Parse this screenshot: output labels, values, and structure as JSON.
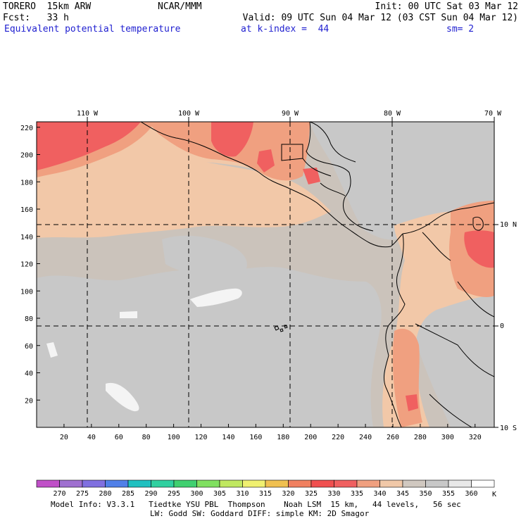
{
  "header": {
    "model": "TORERO  15km ARW",
    "org": "NCAR/MMM",
    "init": "Init: 00 UTC Sat 03 Mar 12",
    "fcst": "Fcst:   33 h",
    "valid": "Valid: 09 UTC Sun 04 Mar 12 (03 CST Sun 04 Mar 12)",
    "field": "Equivalent potential temperature",
    "level": "at k-index =  44",
    "smooth": "sm= 2"
  },
  "axes": {
    "lon_labels": [
      "110 W",
      "100 W",
      "90 W",
      "80 W",
      "70 W"
    ],
    "lat_labels": [
      "10 N",
      "0",
      "10 S"
    ],
    "y_ticks": [
      "20",
      "40",
      "60",
      "80",
      "100",
      "120",
      "140",
      "160",
      "180",
      "200",
      "220"
    ],
    "x_ticks": [
      "20",
      "40",
      "60",
      "80",
      "100",
      "120",
      "140",
      "160",
      "180",
      "200",
      "220",
      "240",
      "260",
      "280",
      "300",
      "320"
    ]
  },
  "colorbar": {
    "labels": [
      "270",
      "275",
      "280",
      "285",
      "290",
      "295",
      "300",
      "305",
      "310",
      "315",
      "320",
      "325",
      "330",
      "335",
      "340",
      "345",
      "350",
      "355",
      "360"
    ],
    "unit": "K",
    "colors": [
      "#c050c8",
      "#9f70d0",
      "#8070e0",
      "#5080e8",
      "#20c0c0",
      "#30d0a0",
      "#40d070",
      "#80e060",
      "#c0e860",
      "#f0f070",
      "#f0c050",
      "#f08060",
      "#f05050",
      "#f06060",
      "#f0a080",
      "#f0c8a8",
      "#d0c8c0",
      "#c8c8c8",
      "#e8e8e8",
      "#ffffff"
    ]
  },
  "footer": {
    "line1": "Model Info: V3.3.1   Tiedtke YSU PBL  Thompson    Noah LSM  15 km,   44 levels,   56 sec",
    "line2": "LW: Godd SW: Goddard DIFF: simple KM: 2D Smagor"
  },
  "map_colors": {
    "background": "#cbc3bb",
    "gray": "#c8c8c8",
    "peach": "#f2c8a8",
    "salmon": "#f0a080",
    "red": "#f06060",
    "white": "#f4f4f4"
  }
}
